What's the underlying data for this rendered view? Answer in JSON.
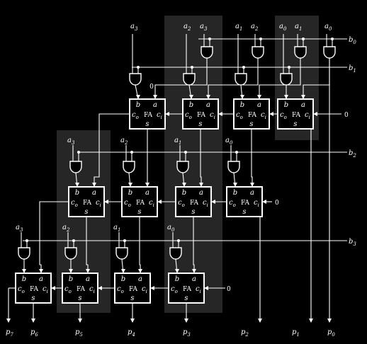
{
  "diagram": {
    "fa_label": "FA",
    "port_b": "b",
    "port_a": "a",
    "port_co": "c",
    "port_co_sub": "o",
    "port_ci": "c",
    "port_ci_sub": "i",
    "port_s": "s",
    "carry_in_zero": "0",
    "top_inputs": [
      {
        "l": "a",
        "s": "3"
      },
      {
        "l": "a",
        "s": "2"
      },
      {
        "l": "a",
        "s": "3"
      },
      {
        "l": "a",
        "s": "1"
      },
      {
        "l": "a",
        "s": "2"
      },
      {
        "l": "a",
        "s": "0"
      },
      {
        "l": "a",
        "s": "1"
      },
      {
        "l": "a",
        "s": "0"
      }
    ],
    "row1_inputs": [
      {
        "l": "a",
        "s": "3"
      },
      {
        "l": "a",
        "s": "2"
      },
      {
        "l": "a",
        "s": "1"
      },
      {
        "l": "a",
        "s": "0"
      }
    ],
    "row2_inputs": [
      {
        "l": "a",
        "s": "3"
      },
      {
        "l": "a",
        "s": "2"
      },
      {
        "l": "a",
        "s": "1"
      },
      {
        "l": "a",
        "s": "0"
      }
    ],
    "b_inputs": [
      {
        "l": "b",
        "s": "0"
      },
      {
        "l": "b",
        "s": "1"
      },
      {
        "l": "b",
        "s": "2"
      },
      {
        "l": "b",
        "s": "3"
      }
    ],
    "outputs": [
      {
        "l": "p",
        "s": "7"
      },
      {
        "l": "p",
        "s": "6"
      },
      {
        "l": "p",
        "s": "5"
      },
      {
        "l": "p",
        "s": "4"
      },
      {
        "l": "p",
        "s": "3"
      },
      {
        "l": "p",
        "s": "2"
      },
      {
        "l": "p",
        "s": "1"
      },
      {
        "l": "p",
        "s": "0"
      }
    ]
  }
}
